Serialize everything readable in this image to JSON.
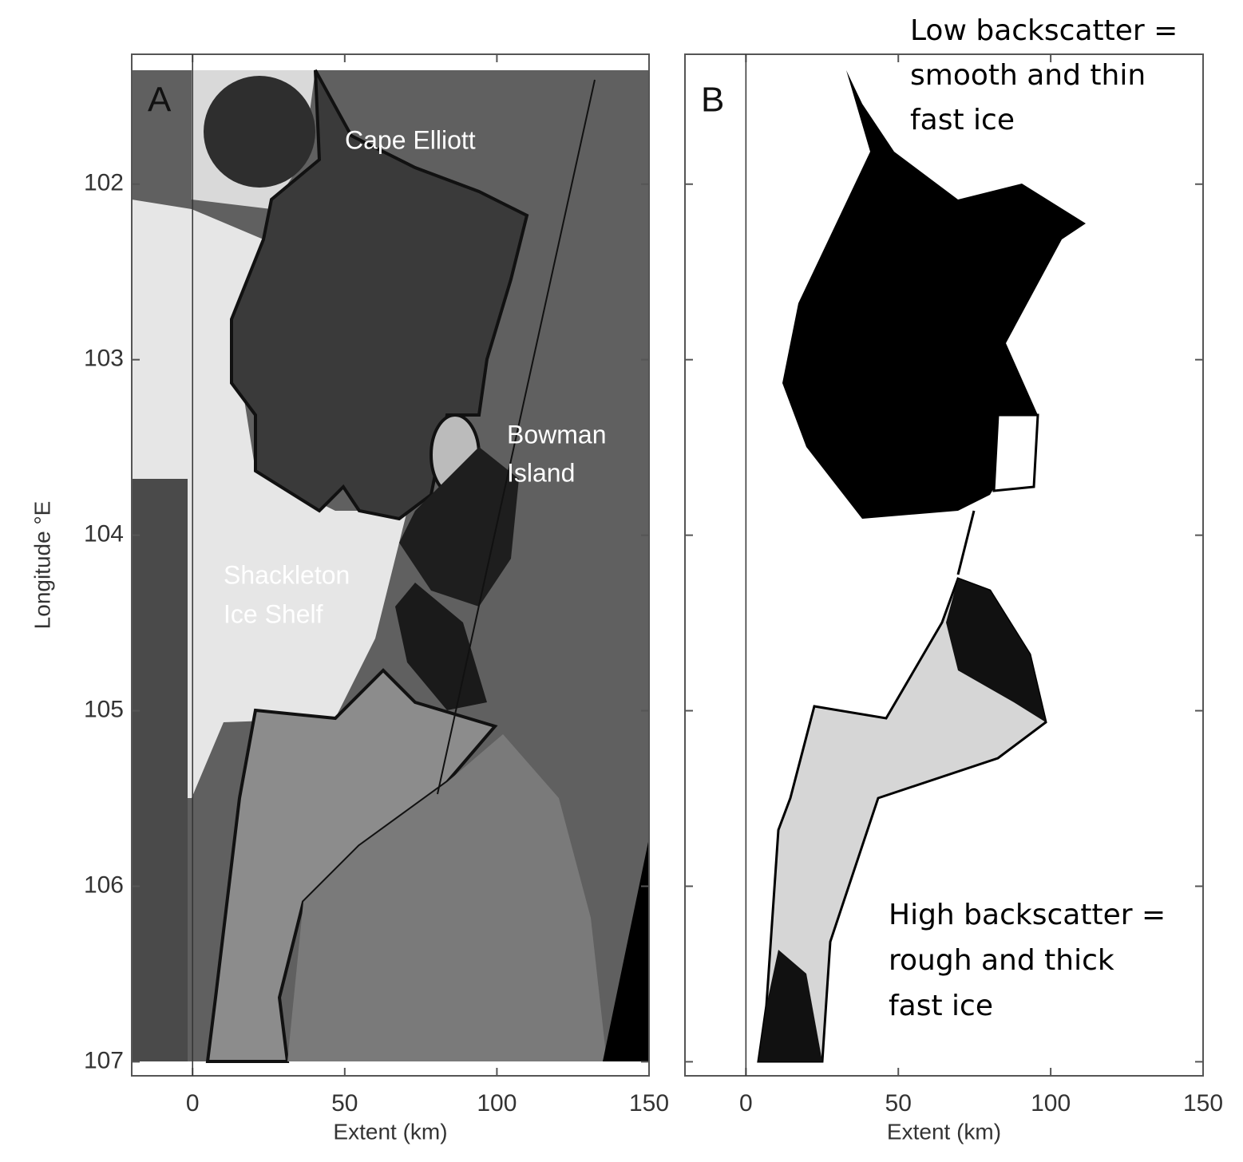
{
  "chart_data": [
    {
      "type": "image",
      "panel_label": "A",
      "xlabel": "Extent (km)",
      "ylabel": "Longitude °E",
      "xlim": [
        -20,
        150
      ],
      "ylim": [
        107.08,
        101.26
      ],
      "xticks": [
        0,
        50,
        100,
        150
      ],
      "yticks": [
        102,
        103,
        104,
        105,
        106,
        107
      ],
      "annotations": [
        [
          "Cape Elliott"
        ],
        [
          "Bowman",
          "Island"
        ],
        [
          "Shackleton",
          "Ice Shelf"
        ]
      ]
    },
    {
      "type": "image",
      "panel_label": "B",
      "xlabel": "Extent (km)",
      "xlim": [
        -20,
        150
      ],
      "ylim": [
        107.08,
        101.26
      ],
      "xticks": [
        0,
        50,
        100,
        150
      ],
      "annotations": [
        [
          "Low backscatter =",
          "smooth and thin",
          "fast ice"
        ],
        [
          "High backscatter =",
          "rough and thick",
          "fast ice"
        ]
      ]
    }
  ]
}
